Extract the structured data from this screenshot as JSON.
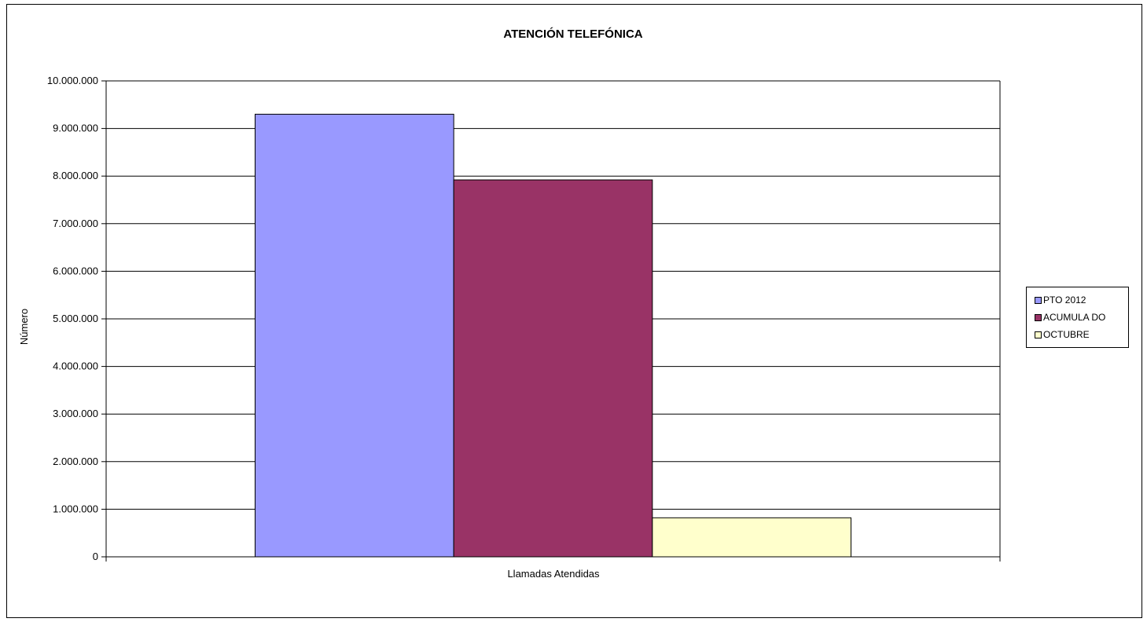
{
  "chart_data": {
    "type": "bar",
    "title": "ATENCIÓN TELEFÓNICA",
    "xlabel": "Llamadas Atendidas",
    "ylabel": "Número",
    "categories": [
      "Llamadas Atendidas"
    ],
    "series": [
      {
        "name": "PTO  2012",
        "values": [
          9300000
        ],
        "color": "#9999ff"
      },
      {
        "name": "ACUMULADO",
        "values": [
          7920000
        ],
        "color": "#993366"
      },
      {
        "name": "OCTUBRE",
        "values": [
          820000
        ],
        "color": "#ffffcc"
      }
    ],
    "ylim": [
      0,
      10000000
    ],
    "yticks": [
      0,
      1000000,
      2000000,
      3000000,
      4000000,
      5000000,
      6000000,
      7000000,
      8000000,
      9000000,
      10000000
    ],
    "ytick_labels": [
      "0",
      "1.000.000",
      "2.000.000",
      "3.000.000",
      "4.000.000",
      "5.000.000",
      "6.000.000",
      "7.000.000",
      "8.000.000",
      "9.000.000",
      "10.000.000"
    ],
    "grid": true,
    "legend_position": "right"
  },
  "legend": {
    "items": [
      {
        "label": "PTO  2012",
        "color": "#9999ff"
      },
      {
        "label": "ACUMULA DO",
        "color": "#993366"
      },
      {
        "label": "OCTUBRE",
        "color": "#ffffcc"
      }
    ]
  }
}
